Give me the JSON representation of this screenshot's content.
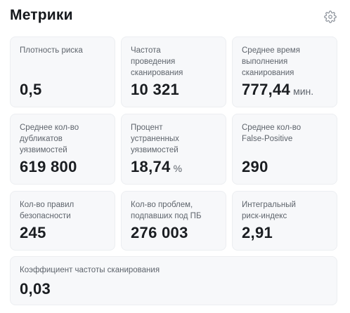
{
  "header": {
    "title": "Метрики",
    "settings_icon": "gear-icon"
  },
  "metrics": [
    {
      "label": "Плотность риска",
      "value": "0,5",
      "unit": ""
    },
    {
      "label": "Частота\nпроведения\nсканирования",
      "value": "10 321",
      "unit": ""
    },
    {
      "label": "Среднее время\nвыполнения\nсканирования",
      "value": "777,44",
      "unit": "мин."
    },
    {
      "label": "Среднее кол-во\nдубликатов\nуязвимостей",
      "value": "619 800",
      "unit": ""
    },
    {
      "label": "Процент\nустраненных\nуязвимостей",
      "value": "18,74",
      "unit": "%"
    },
    {
      "label": "Среднее кол-во\nFalse-Positive",
      "value": "290",
      "unit": ""
    },
    {
      "label": "Кол-во правил\nбезопасности",
      "value": "245",
      "unit": ""
    },
    {
      "label": "Кол-во проблем,\nподпавших под ПБ",
      "value": "276 003",
      "unit": ""
    },
    {
      "label": "Интегральный\nриск-индекс",
      "value": "2,91",
      "unit": ""
    },
    {
      "label": "Коэффициент частоты сканирования",
      "value": "0,03",
      "unit": ""
    }
  ]
}
